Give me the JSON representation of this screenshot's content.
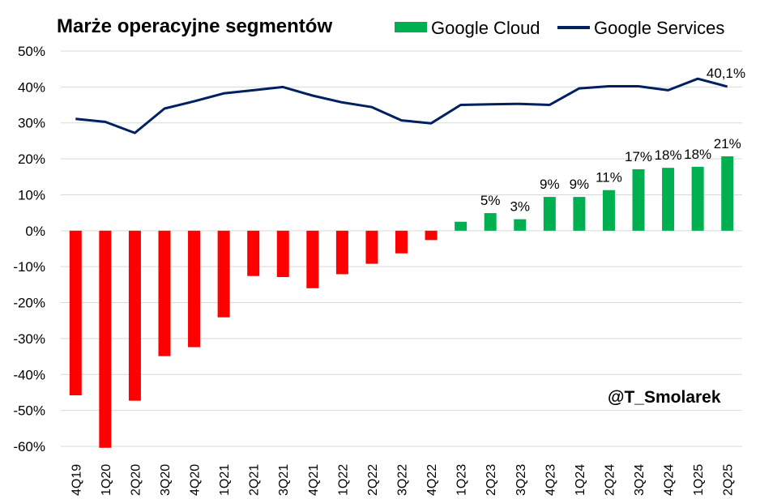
{
  "chart_data": {
    "type": "bar+line",
    "title": "Marże operacyjne segmentów",
    "categories": [
      "4Q19",
      "1Q20",
      "2Q20",
      "3Q20",
      "4Q20",
      "1Q21",
      "2Q21",
      "3Q21",
      "4Q21",
      "1Q22",
      "2Q22",
      "3Q22",
      "4Q22",
      "1Q23",
      "2Q23",
      "3Q23",
      "4Q23",
      "1Q24",
      "2Q24",
      "3Q24",
      "4Q24",
      "1Q25",
      "2Q25"
    ],
    "ylim": [
      -60,
      50
    ],
    "yticks": [
      50,
      40,
      30,
      20,
      10,
      0,
      -10,
      -20,
      -30,
      -40,
      -50,
      -60
    ],
    "ytick_labels": [
      "50%",
      "40%",
      "30%",
      "20%",
      "10%",
      "0%",
      "-10%",
      "-20%",
      "-30%",
      "-40%",
      "-50%",
      "-60%"
    ],
    "series": [
      {
        "name": "Google Cloud",
        "kind": "bar",
        "color_pos": "#00b050",
        "color_neg": "#ff0000",
        "values": [
          -45.8,
          -60.4,
          -47.3,
          -34.9,
          -32.4,
          -24.1,
          -12.6,
          -12.9,
          -16.0,
          -12.1,
          -9.2,
          -6.3,
          -2.6,
          2.5,
          4.9,
          3.2,
          9.4,
          9.4,
          11.3,
          17.1,
          17.5,
          17.8,
          20.7
        ],
        "data_labels": [
          "",
          "",
          "",
          "",
          "",
          "",
          "",
          "",
          "",
          "",
          "",
          "",
          "",
          "",
          "5%",
          "3%",
          "9%",
          "9%",
          "11%",
          "17%",
          "18%",
          "18%",
          "21%"
        ]
      },
      {
        "name": "Google Services",
        "kind": "line",
        "color": "#002060",
        "values": [
          31.1,
          30.3,
          27.2,
          34.0,
          36.0,
          38.2,
          39.1,
          40.0,
          37.6,
          35.7,
          34.4,
          30.7,
          29.9,
          35.0,
          35.2,
          35.3,
          35.0,
          39.6,
          40.2,
          40.2,
          39.1,
          42.3,
          40.1
        ],
        "last_label": "40,1%"
      }
    ],
    "watermark": "@T_Smolarek",
    "grid": true,
    "legend_position": "top-right"
  }
}
